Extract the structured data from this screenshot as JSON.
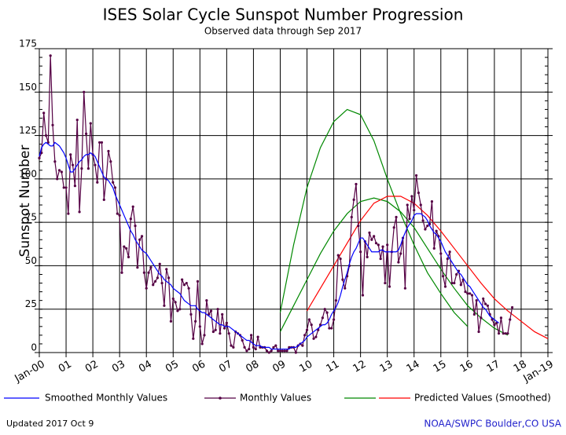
{
  "chart_data": {
    "type": "line",
    "title": "ISES Solar Cycle Sunspot Number Progression",
    "subtitle": "Observed data through Sep 2017",
    "y_label": "Sunspot Number",
    "footer_left": "Updated 2017 Oct  9",
    "footer_right": "NOAA/SWPC Boulder,CO USA",
    "grid": true,
    "xlim": [
      2000,
      2019
    ],
    "xticks": [
      {
        "value": 2000,
        "label": "Jan-00"
      },
      {
        "value": 2001,
        "label": "01"
      },
      {
        "value": 2002,
        "label": "02"
      },
      {
        "value": 2003,
        "label": "03"
      },
      {
        "value": 2004,
        "label": "04"
      },
      {
        "value": 2005,
        "label": "05"
      },
      {
        "value": 2006,
        "label": "06"
      },
      {
        "value": 2007,
        "label": "07"
      },
      {
        "value": 2008,
        "label": "08"
      },
      {
        "value": 2009,
        "label": "09"
      },
      {
        "value": 2010,
        "label": "10"
      },
      {
        "value": 2011,
        "label": "11"
      },
      {
        "value": 2012,
        "label": "12"
      },
      {
        "value": 2013,
        "label": "13"
      },
      {
        "value": 2014,
        "label": "14"
      },
      {
        "value": 2015,
        "label": "15"
      },
      {
        "value": 2016,
        "label": "16"
      },
      {
        "value": 2017,
        "label": "17"
      },
      {
        "value": 2018,
        "label": "18"
      },
      {
        "value": 2019,
        "label": "Jan-19"
      }
    ],
    "ylim": [
      0,
      175
    ],
    "yticks": [
      0,
      25,
      50,
      75,
      100,
      125,
      150,
      175
    ],
    "x": [
      "2000-01",
      "2000-02",
      "2000-03",
      "2000-04",
      "2000-05",
      "2000-06",
      "2000-07",
      "2000-08",
      "2000-09",
      "2000-10",
      "2000-11",
      "2000-12",
      "2001-01",
      "2001-02",
      "2001-03",
      "2001-04",
      "2001-05",
      "2001-06",
      "2001-07",
      "2001-08",
      "2001-09",
      "2001-10",
      "2001-11",
      "2001-12",
      "2002-01",
      "2002-02",
      "2002-03",
      "2002-04",
      "2002-05",
      "2002-06",
      "2002-07",
      "2002-08",
      "2002-09",
      "2002-10",
      "2002-11",
      "2002-12",
      "2003-01",
      "2003-02",
      "2003-03",
      "2003-04",
      "2003-05",
      "2003-06",
      "2003-07",
      "2003-08",
      "2003-09",
      "2003-10",
      "2003-11",
      "2003-12",
      "2004-01",
      "2004-02",
      "2004-03",
      "2004-04",
      "2004-05",
      "2004-06",
      "2004-07",
      "2004-08",
      "2004-09",
      "2004-10",
      "2004-11",
      "2004-12",
      "2005-01",
      "2005-02",
      "2005-03",
      "2005-04",
      "2005-05",
      "2005-06",
      "2005-07",
      "2005-08",
      "2005-09",
      "2005-10",
      "2005-11",
      "2005-12",
      "2006-01",
      "2006-02",
      "2006-03",
      "2006-04",
      "2006-05",
      "2006-06",
      "2006-07",
      "2006-08",
      "2006-09",
      "2006-10",
      "2006-11",
      "2006-12",
      "2007-01",
      "2007-02",
      "2007-03",
      "2007-04",
      "2007-05",
      "2007-06",
      "2007-07",
      "2007-08",
      "2007-09",
      "2007-10",
      "2007-11",
      "2007-12",
      "2008-01",
      "2008-02",
      "2008-03",
      "2008-04",
      "2008-05",
      "2008-06",
      "2008-07",
      "2008-08",
      "2008-09",
      "2008-10",
      "2008-11",
      "2008-12",
      "2009-01",
      "2009-02",
      "2009-03",
      "2009-04",
      "2009-05",
      "2009-06",
      "2009-07",
      "2009-08",
      "2009-09",
      "2009-10",
      "2009-11",
      "2009-12",
      "2010-01",
      "2010-02",
      "2010-03",
      "2010-04",
      "2010-05",
      "2010-06",
      "2010-07",
      "2010-08",
      "2010-09",
      "2010-10",
      "2010-11",
      "2010-12",
      "2011-01",
      "2011-02",
      "2011-03",
      "2011-04",
      "2011-05",
      "2011-06",
      "2011-07",
      "2011-08",
      "2011-09",
      "2011-10",
      "2011-11",
      "2011-12",
      "2012-01",
      "2012-02",
      "2012-03",
      "2012-04",
      "2012-05",
      "2012-06",
      "2012-07",
      "2012-08",
      "2012-09",
      "2012-10",
      "2012-11",
      "2012-12",
      "2013-01",
      "2013-02",
      "2013-03",
      "2013-04",
      "2013-05",
      "2013-06",
      "2013-07",
      "2013-08",
      "2013-09",
      "2013-10",
      "2013-11",
      "2013-12",
      "2014-01",
      "2014-02",
      "2014-03",
      "2014-04",
      "2014-05",
      "2014-06",
      "2014-07",
      "2014-08",
      "2014-09",
      "2014-10",
      "2014-11",
      "2014-12",
      "2015-01",
      "2015-02",
      "2015-03",
      "2015-04",
      "2015-05",
      "2015-06",
      "2015-07",
      "2015-08",
      "2015-09",
      "2015-10",
      "2015-11",
      "2015-12",
      "2016-01",
      "2016-02",
      "2016-03",
      "2016-04",
      "2016-05",
      "2016-06",
      "2016-07",
      "2016-08",
      "2016-09",
      "2016-10",
      "2016-11",
      "2016-12",
      "2017-01",
      "2017-02",
      "2017-03",
      "2017-04",
      "2017-05",
      "2017-06",
      "2017-07",
      "2017-08",
      "2017-09"
    ],
    "series": [
      {
        "name": "Smoothed Monthly Values",
        "color": "#0000ff",
        "values": [
          113,
          118,
          120,
          121,
          120,
          119,
          119,
          121,
          120,
          119,
          117,
          115,
          112,
          108,
          104,
          104,
          106,
          108,
          110,
          111,
          113,
          114,
          114,
          115,
          114,
          113,
          110,
          107,
          104,
          101,
          100,
          99,
          97,
          95,
          91,
          88,
          85,
          82,
          79,
          76,
          73,
          70,
          68,
          65,
          63,
          61,
          59,
          58,
          57,
          55,
          53,
          51,
          49,
          47,
          45,
          44,
          42,
          41,
          40,
          39,
          37,
          36,
          35,
          34,
          32,
          30,
          29,
          28,
          27,
          27,
          27,
          25,
          24,
          23,
          23,
          22,
          21,
          20,
          19,
          18,
          17,
          16,
          16,
          15,
          15,
          15,
          14,
          13,
          12,
          11,
          10,
          9,
          8,
          7,
          7,
          6,
          5,
          4,
          4,
          4,
          3,
          3,
          3,
          3,
          2,
          2,
          2,
          2,
          2,
          2,
          2,
          2,
          2,
          3,
          3,
          3,
          4,
          5,
          6,
          7,
          9,
          10,
          11,
          12,
          13,
          14,
          15,
          16,
          16,
          17,
          19,
          22,
          24,
          26,
          29,
          33,
          38,
          42,
          46,
          51,
          55,
          58,
          60,
          63,
          66,
          66,
          64,
          62,
          60,
          58,
          58,
          58,
          58,
          59,
          59,
          58,
          58,
          58,
          58,
          58,
          58,
          59,
          62,
          66,
          69,
          72,
          74,
          76,
          79,
          80,
          80,
          80,
          79,
          78,
          76,
          73,
          71,
          69,
          68,
          66,
          64,
          61,
          58,
          56,
          54,
          52,
          50,
          48,
          46,
          45,
          43,
          41,
          39,
          38,
          36,
          34,
          32,
          30,
          28,
          26,
          25,
          23,
          21,
          20,
          19,
          18,
          17,
          null,
          null,
          null,
          null,
          null,
          null
        ]
      },
      {
        "name": "Monthly Values",
        "color": "#550044",
        "values": [
          112,
          115,
          138,
          125,
          121,
          171,
          131,
          110,
          100,
          105,
          104,
          95,
          95,
          80,
          114,
          108,
          96,
          134,
          81,
          106,
          150,
          126,
          106,
          132,
          114,
          108,
          98,
          121,
          121,
          88,
          100,
          116,
          110,
          98,
          95,
          80,
          79,
          46,
          61,
          60,
          55,
          77,
          84,
          73,
          49,
          65,
          67,
          46,
          37,
          46,
          49,
          39,
          41,
          43,
          51,
          40,
          27,
          48,
          43,
          18,
          31,
          29,
          24,
          25,
          42,
          39,
          40,
          37,
          22,
          8,
          18,
          41,
          15,
          5,
          10,
          30,
          22,
          24,
          12,
          13,
          25,
          11,
          22,
          14,
          17,
          11,
          4,
          3,
          12,
          11,
          10,
          7,
          3,
          1,
          2,
          10,
          3,
          2,
          9,
          3,
          3,
          3,
          1,
          0,
          1,
          3,
          4,
          1,
          1,
          1,
          1,
          1,
          3,
          3,
          3,
          0,
          4,
          5,
          4,
          10,
          13,
          19,
          16,
          8,
          9,
          13,
          16,
          20,
          25,
          23,
          14,
          14,
          19,
          30,
          56,
          54,
          42,
          37,
          44,
          50,
          78,
          88,
          97,
          73,
          58,
          33,
          64,
          55,
          69,
          65,
          67,
          63,
          62,
          54,
          61,
          40,
          62,
          38,
          58,
          72,
          78,
          52,
          57,
          66,
          37,
          85,
          77,
          90,
          82,
          102,
          92,
          85,
          76,
          71,
          73,
          74,
          87,
          60,
          70,
          67,
          57,
          44,
          38,
          54,
          58,
          40,
          40,
          45,
          47,
          39,
          42,
          35,
          34,
          34,
          33,
          22,
          30,
          12,
          20,
          31,
          28,
          27,
          22,
          19,
          16,
          17,
          11,
          20,
          11,
          11,
          11,
          19,
          26
        ]
      },
      {
        "name": "Predicted Values (Smoothed)",
        "color": "#ff0000",
        "x": [
          "2010-01",
          "2010-07",
          "2011-01",
          "2011-07",
          "2012-01",
          "2012-07",
          "2013-01",
          "2013-07",
          "2014-01",
          "2014-07",
          "2015-01",
          "2015-07",
          "2016-01",
          "2016-07",
          "2017-01",
          "2017-07",
          "2018-01",
          "2018-07",
          "2019-01"
        ],
        "values": [
          24,
          37,
          50,
          63,
          76,
          86,
          90,
          90,
          86,
          79,
          70,
          60,
          50,
          40,
          31,
          24,
          18,
          12,
          8
        ]
      },
      {
        "color": "#008800",
        "x": [
          "2009-01",
          "2009-07",
          "2010-01",
          "2010-07",
          "2011-01",
          "2011-07",
          "2012-01",
          "2012-07",
          "2013-01",
          "2013-07",
          "2014-01",
          "2014-07",
          "2015-01",
          "2015-07",
          "2016-01"
        ],
        "values": [
          23,
          62,
          95,
          118,
          133,
          140,
          137,
          122,
          100,
          80,
          62,
          46,
          34,
          23,
          15
        ]
      },
      {
        "color": "#008800",
        "x": [
          "2009-01",
          "2009-07",
          "2010-01",
          "2010-07",
          "2011-01",
          "2011-07",
          "2012-01",
          "2012-07",
          "2013-01",
          "2013-07",
          "2014-01",
          "2014-07",
          "2015-01",
          "2015-07",
          "2016-01",
          "2016-07",
          "2017-01",
          "2017-07"
        ],
        "values": [
          12,
          27,
          42,
          57,
          70,
          80,
          87,
          89,
          87,
          81,
          72,
          60,
          48,
          37,
          27,
          20,
          14,
          10
        ]
      }
    ]
  }
}
